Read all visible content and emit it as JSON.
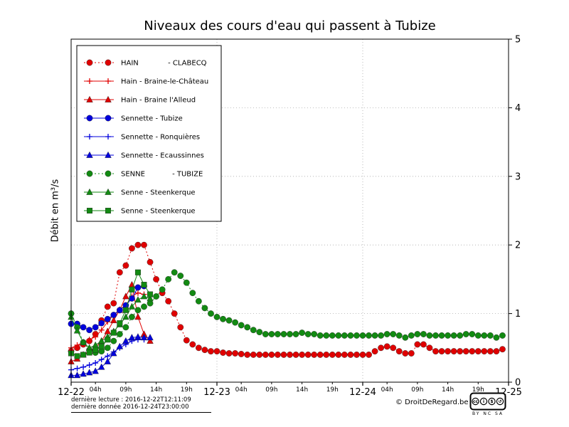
{
  "chart_data": {
    "type": "line",
    "title": "Niveaux des cours d'eau qui passent à Tubize",
    "ylabel": "Débit en m³/s",
    "xlabel": "",
    "xlim": [
      0,
      72
    ],
    "ylim": [
      0,
      5
    ],
    "y_ticks": [
      0,
      1,
      2,
      3,
      4,
      5
    ],
    "x_major_ticks": [
      {
        "pos": 0,
        "label": "12-22"
      },
      {
        "pos": 24,
        "label": "12-23"
      },
      {
        "pos": 48,
        "label": "12-24"
      },
      {
        "pos": 72,
        "label": "12-25"
      }
    ],
    "x_minor_ticks": [
      {
        "pos": 4,
        "label": "04h"
      },
      {
        "pos": 9,
        "label": "09h"
      },
      {
        "pos": 14,
        "label": "14h"
      },
      {
        "pos": 19,
        "label": "19h"
      },
      {
        "pos": 28,
        "label": "04h"
      },
      {
        "pos": 33,
        "label": "09h"
      },
      {
        "pos": 38,
        "label": "14h"
      },
      {
        "pos": 43,
        "label": "19h"
      },
      {
        "pos": 52,
        "label": "04h"
      },
      {
        "pos": 57,
        "label": "09h"
      },
      {
        "pos": 62,
        "label": "14h"
      },
      {
        "pos": 67,
        "label": "19h"
      }
    ],
    "grid": "dotted",
    "legend_position": "upper left",
    "series": [
      {
        "id": "hain-clabecq",
        "name": "HAIN             - CLABECQ",
        "color": "#e00000",
        "marker": "circle",
        "line": "dotted",
        "x": [
          0,
          1,
          2,
          3,
          4,
          5,
          6,
          7,
          8,
          9,
          10,
          11,
          12,
          13,
          14,
          15,
          16,
          17,
          18,
          19,
          20,
          21,
          22,
          23,
          24,
          25,
          26,
          27,
          28,
          29,
          30,
          31,
          32,
          33,
          34,
          35,
          36,
          37,
          38,
          39,
          40,
          41,
          42,
          43,
          44,
          45,
          46,
          47,
          48,
          49,
          50,
          51,
          52,
          53,
          54,
          55,
          56,
          57,
          58,
          59,
          60,
          61,
          62,
          63,
          64,
          65,
          66,
          67,
          68,
          69,
          70,
          71
        ],
        "y": [
          0.45,
          0.5,
          0.55,
          0.6,
          0.7,
          0.9,
          1.1,
          1.15,
          1.6,
          1.7,
          1.95,
          2.0,
          2.0,
          1.75,
          1.5,
          1.3,
          1.18,
          1.0,
          0.8,
          0.61,
          0.55,
          0.5,
          0.47,
          0.45,
          0.45,
          0.43,
          0.42,
          0.42,
          0.41,
          0.4,
          0.4,
          0.4,
          0.4,
          0.4,
          0.4,
          0.4,
          0.4,
          0.4,
          0.4,
          0.4,
          0.4,
          0.4,
          0.4,
          0.4,
          0.4,
          0.4,
          0.4,
          0.4,
          0.4,
          0.4,
          0.45,
          0.5,
          0.52,
          0.5,
          0.45,
          0.42,
          0.42,
          0.55,
          0.55,
          0.5,
          0.45,
          0.45,
          0.45,
          0.45,
          0.45,
          0.45,
          0.45,
          0.45,
          0.45,
          0.45,
          0.45,
          0.48
        ]
      },
      {
        "id": "hain-braine-le-chateau",
        "name": "Hain - Braine-le-Château",
        "color": "#e00000",
        "marker": "plus",
        "line": "solid",
        "x": [
          0,
          1,
          2,
          3,
          4,
          5,
          6,
          7,
          8,
          9,
          10,
          11,
          12
        ],
        "y": [
          0.5,
          0.54,
          0.58,
          0.62,
          0.66,
          0.76,
          0.88,
          0.98,
          1.06,
          1.12,
          1.25,
          1.3,
          1.28
        ]
      },
      {
        "id": "hain-braine-l-alleud",
        "name": "Hain - Braine l'Alleud",
        "color": "#e00000",
        "marker": "triangle-up",
        "line": "solid",
        "x": [
          0,
          1,
          2,
          3,
          4,
          5,
          6,
          7,
          8,
          9,
          10,
          11,
          12,
          13
        ],
        "y": [
          0.3,
          0.34,
          0.4,
          0.45,
          0.5,
          0.6,
          0.74,
          0.9,
          1.05,
          1.25,
          1.42,
          0.95,
          0.7,
          0.6
        ]
      },
      {
        "id": "sennette-tubize",
        "name": "Sennette - Tubize",
        "color": "#0000dd",
        "marker": "circle",
        "line": "solid",
        "x": [
          0,
          1,
          2,
          3,
          4,
          5,
          6,
          7,
          8,
          9,
          10,
          11,
          12
        ],
        "y": [
          0.85,
          0.85,
          0.8,
          0.76,
          0.8,
          0.86,
          0.92,
          0.98,
          1.05,
          1.12,
          1.22,
          1.38,
          1.4
        ]
      },
      {
        "id": "sennette-ronquieres",
        "name": "Sennette - Ronquières",
        "color": "#0000dd",
        "marker": "plus",
        "line": "solid",
        "x": [
          0,
          1,
          2,
          3,
          4,
          5,
          6,
          7,
          8,
          9,
          10,
          11,
          12
        ],
        "y": [
          0.18,
          0.2,
          0.22,
          0.25,
          0.28,
          0.33,
          0.38,
          0.44,
          0.5,
          0.55,
          0.6,
          0.62,
          0.62
        ]
      },
      {
        "id": "sennette-ecaussinnes",
        "name": "Sennette - Ecaussinnes",
        "color": "#0000dd",
        "marker": "triangle-up",
        "line": "solid",
        "x": [
          0,
          1,
          2,
          3,
          4,
          5,
          6,
          7,
          8,
          9,
          10,
          11,
          12,
          13
        ],
        "y": [
          0.1,
          0.1,
          0.12,
          0.14,
          0.16,
          0.22,
          0.3,
          0.42,
          0.52,
          0.6,
          0.65,
          0.66,
          0.65,
          0.65
        ]
      },
      {
        "id": "senne-tubize",
        "name": "SENNE            - TUBIZE",
        "color": "#128a12",
        "marker": "circle",
        "line": "dotted",
        "x": [
          0,
          1,
          2,
          3,
          4,
          5,
          6,
          7,
          8,
          9,
          10,
          11,
          12,
          13,
          14,
          15,
          16,
          17,
          18,
          19,
          20,
          21,
          22,
          23,
          24,
          25,
          26,
          27,
          28,
          29,
          30,
          31,
          32,
          33,
          34,
          35,
          36,
          37,
          38,
          39,
          40,
          41,
          42,
          43,
          44,
          45,
          46,
          47,
          48,
          49,
          50,
          51,
          52,
          53,
          54,
          55,
          56,
          57,
          58,
          59,
          60,
          61,
          62,
          63,
          64,
          65,
          66,
          67,
          68,
          69,
          70,
          71
        ],
        "y": [
          1.0,
          0.8,
          0.58,
          0.47,
          0.43,
          0.45,
          0.5,
          0.6,
          0.7,
          0.8,
          0.95,
          1.05,
          1.1,
          1.15,
          1.25,
          1.35,
          1.5,
          1.6,
          1.55,
          1.45,
          1.3,
          1.18,
          1.08,
          1.0,
          0.95,
          0.92,
          0.9,
          0.87,
          0.83,
          0.8,
          0.76,
          0.73,
          0.7,
          0.7,
          0.7,
          0.7,
          0.7,
          0.7,
          0.72,
          0.7,
          0.7,
          0.68,
          0.68,
          0.68,
          0.68,
          0.68,
          0.68,
          0.68,
          0.68,
          0.68,
          0.68,
          0.68,
          0.7,
          0.7,
          0.68,
          0.65,
          0.68,
          0.7,
          0.7,
          0.68,
          0.68,
          0.68,
          0.68,
          0.68,
          0.68,
          0.7,
          0.7,
          0.68,
          0.68,
          0.68,
          0.65,
          0.68
        ]
      },
      {
        "id": "senne-steenkerque-1",
        "name": "Senne - Steenkerque",
        "color": "#128a12",
        "marker": "triangle-up",
        "line": "solid",
        "x": [
          0,
          1,
          2,
          3,
          4,
          5,
          6,
          7,
          8,
          9,
          10,
          11,
          12,
          13
        ],
        "y": [
          0.95,
          0.75,
          0.58,
          0.5,
          0.54,
          0.6,
          0.66,
          0.74,
          0.84,
          0.95,
          1.1,
          1.2,
          1.25,
          1.22
        ]
      },
      {
        "id": "senne-steenkerque-2",
        "name": "Senne - Steenkerque",
        "color": "#128a12",
        "marker": "square",
        "line": "solid",
        "x": [
          0,
          1,
          2,
          3,
          4,
          5,
          6,
          7,
          8,
          9,
          10,
          11,
          12,
          13
        ],
        "y": [
          0.42,
          0.38,
          0.4,
          0.43,
          0.47,
          0.52,
          0.62,
          0.72,
          0.86,
          1.05,
          1.35,
          1.6,
          1.42,
          1.28
        ]
      }
    ]
  },
  "footer": {
    "last_reading": "dernière lecture : 2016-12-22T12:11:09",
    "last_data": "dernière donnée  2016-12-24T23:00:00",
    "copyright": "© DroitDeRegard.be",
    "license_label": "BY NC SA",
    "license_icons": [
      "cc-icon",
      "person-icon",
      "no-money-icon",
      "share-alike-icon"
    ]
  },
  "style": {
    "grid_color": "#aaaaaa",
    "frame_color": "#000000",
    "red": "#e00000",
    "blue": "#0000dd",
    "green": "#128a12"
  }
}
